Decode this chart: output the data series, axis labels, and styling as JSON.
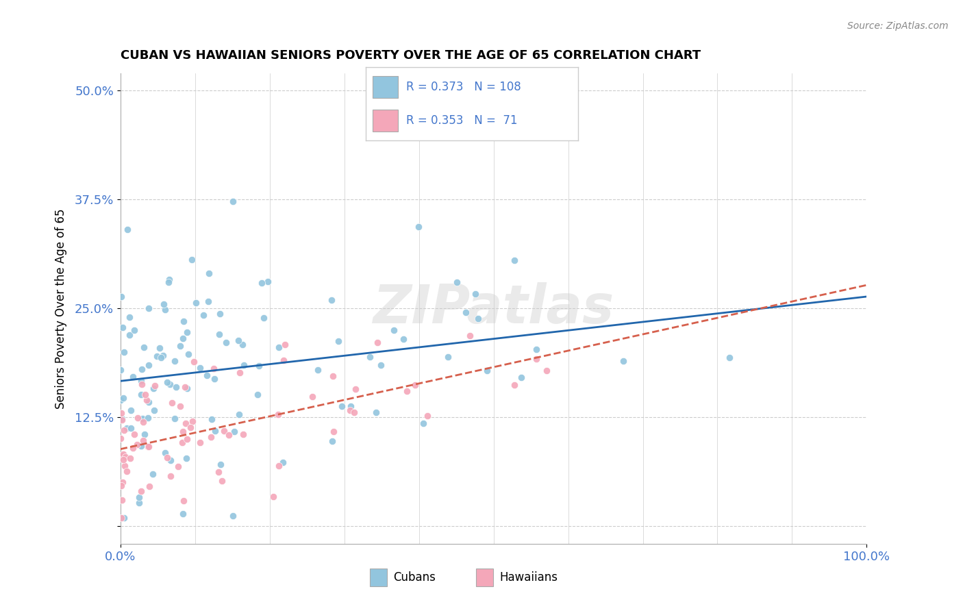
{
  "title": "CUBAN VS HAWAIIAN SENIORS POVERTY OVER THE AGE OF 65 CORRELATION CHART",
  "source": "Source: ZipAtlas.com",
  "ylabel": "Seniors Poverty Over the Age of 65",
  "xlim": [
    0,
    1.0
  ],
  "ylim": [
    -0.02,
    0.52
  ],
  "yticks": [
    0.0,
    0.125,
    0.25,
    0.375,
    0.5
  ],
  "ytick_labels": [
    "",
    "12.5%",
    "25.0%",
    "37.5%",
    "50.0%"
  ],
  "xtick_labels": [
    "0.0%",
    "100.0%"
  ],
  "cuban_R": 0.373,
  "cuban_N": 108,
  "hawaiian_R": 0.353,
  "hawaiian_N": 71,
  "blue_color": "#92c5de",
  "pink_color": "#f4a7b9",
  "blue_line_color": "#2166ac",
  "pink_line_color": "#d6604d",
  "watermark": "ZIPatlas",
  "background_color": "#ffffff",
  "grid_color": "#cccccc",
  "tick_color": "#4477cc",
  "legend_text_color": "#4477cc"
}
